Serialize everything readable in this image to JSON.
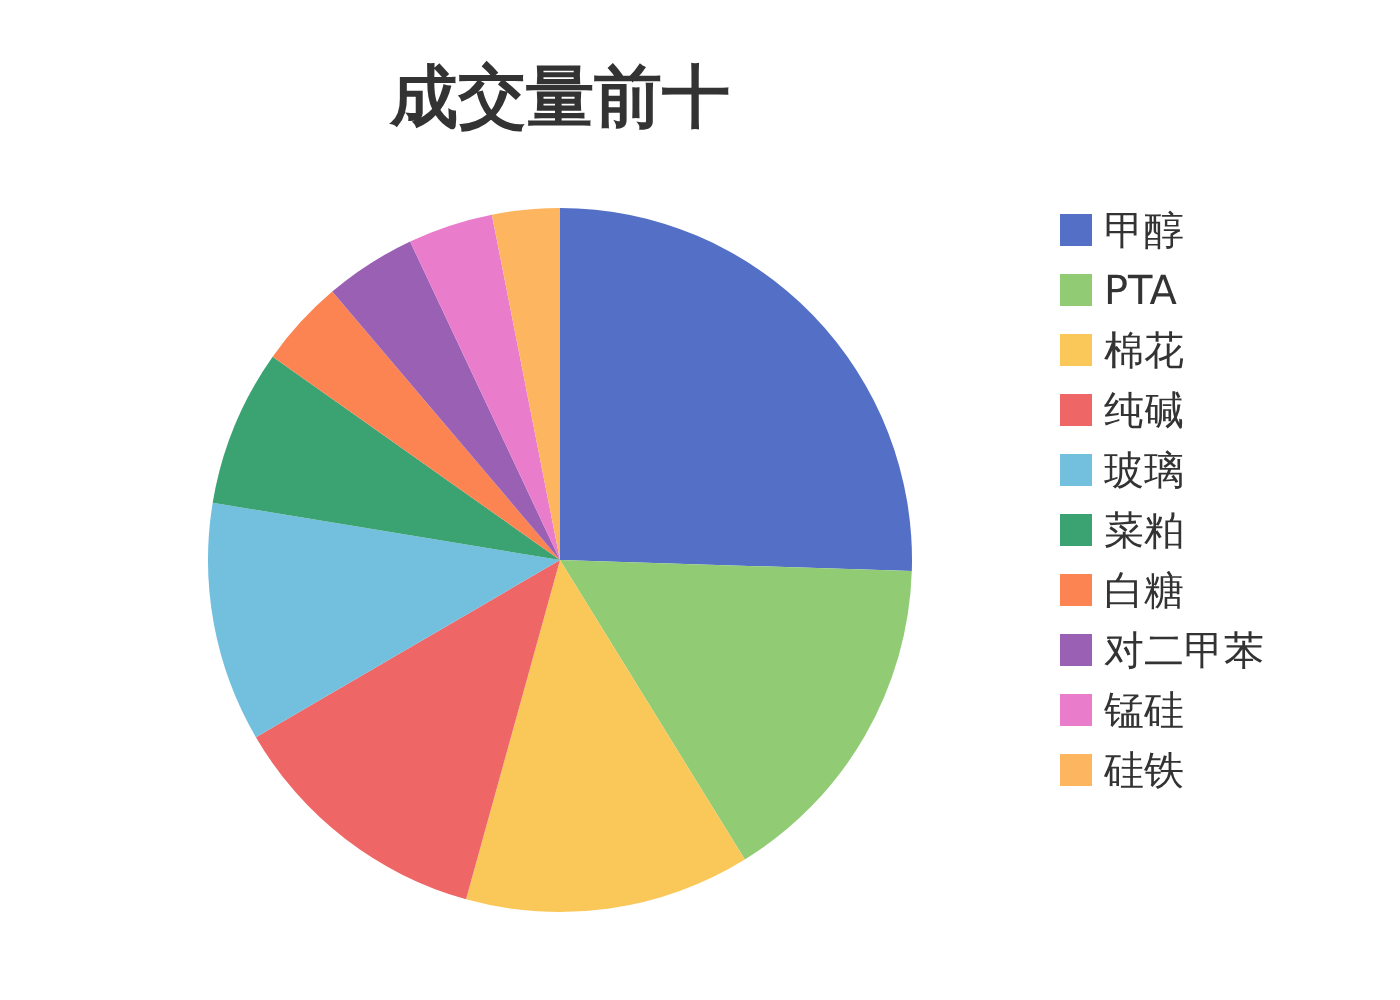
{
  "chart_data": {
    "type": "pie",
    "title": "成交量前十",
    "categories": [
      "甲醇",
      "PTA",
      "棉花",
      "纯碱",
      "玻璃",
      "菜粕",
      "白糖",
      "对二甲苯",
      "锰硅",
      "硅铁"
    ],
    "values": [
      25.5,
      15.7,
      13.1,
      12.3,
      11,
      7.2,
      4,
      4.2,
      3.9,
      3.1
    ],
    "colors": [
      "#5470c6",
      "#91cc75",
      "#fac858",
      "#ee6666",
      "#73c0de",
      "#3ba272",
      "#fc8452",
      "#9a60b4",
      "#ea7ccc",
      "#fdb55f"
    ],
    "legend": "right"
  }
}
